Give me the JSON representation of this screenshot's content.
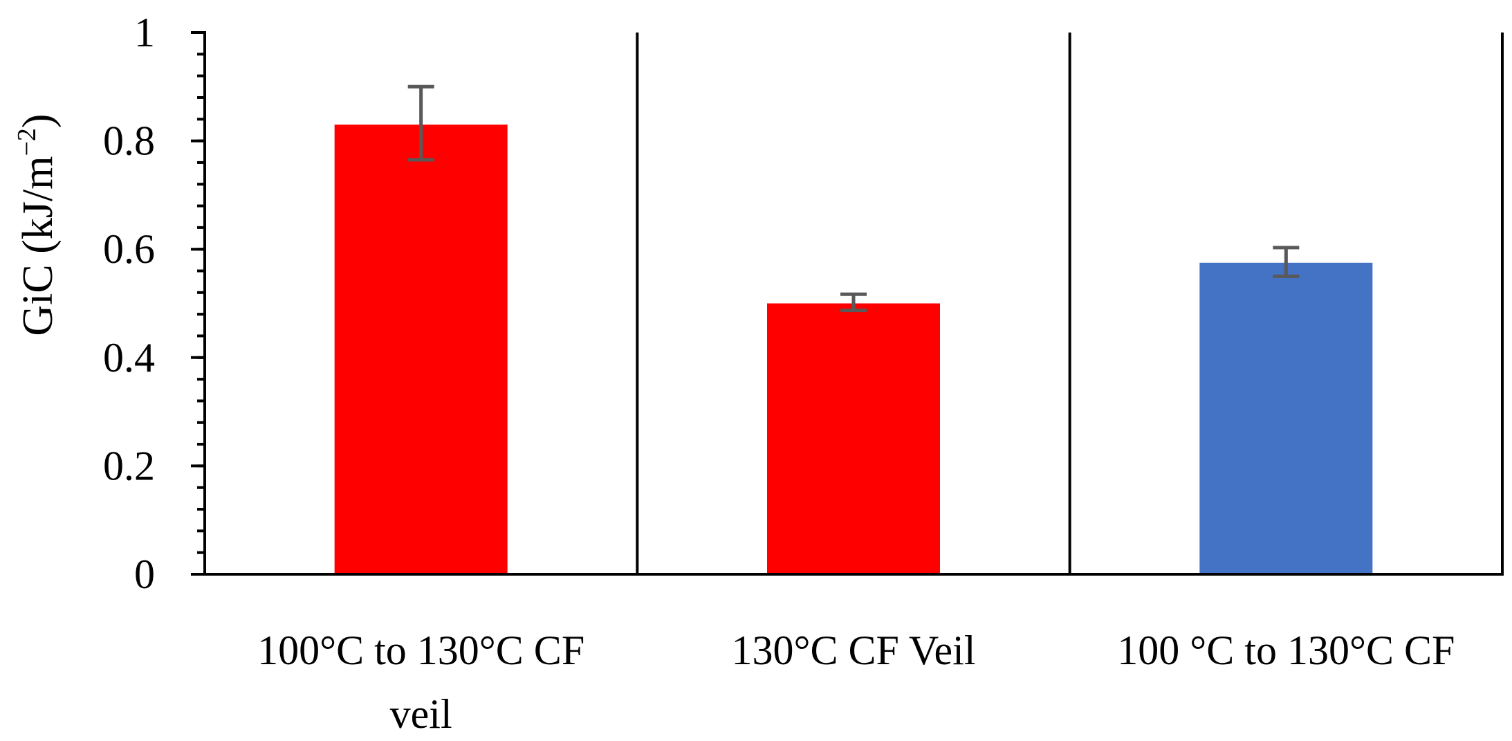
{
  "chart_data": {
    "type": "bar",
    "title": "",
    "xlabel": "",
    "ylabel": "GiC (kJ/m",
    "ylabel_sup": "−2",
    "ylabel_close": ")",
    "ylim": [
      0,
      1
    ],
    "major_ticks": [
      0,
      0.2,
      0.4,
      0.6,
      0.8,
      1
    ],
    "tick_labels": [
      "0",
      "0.2",
      "0.4",
      "0.6",
      "0.8",
      "1"
    ],
    "minor_tick_step": 0.04,
    "categories": [
      {
        "lines": [
          "100°C to 130°C CF",
          "veil"
        ]
      },
      {
        "lines": [
          "130°C CF Veil"
        ]
      },
      {
        "lines": [
          "100 °C to 130°C CF"
        ]
      }
    ],
    "values": [
      0.83,
      0.5,
      0.575
    ],
    "errors": [
      {
        "low": 0.765,
        "high": 0.9
      },
      {
        "low": 0.487,
        "high": 0.517
      },
      {
        "low": 0.55,
        "high": 0.603
      }
    ],
    "colors": [
      "#ff0000",
      "#ff0000",
      "#4472c4"
    ],
    "error_color": "#595959",
    "axis_color": "#000000",
    "grid": false,
    "legend": "none"
  }
}
